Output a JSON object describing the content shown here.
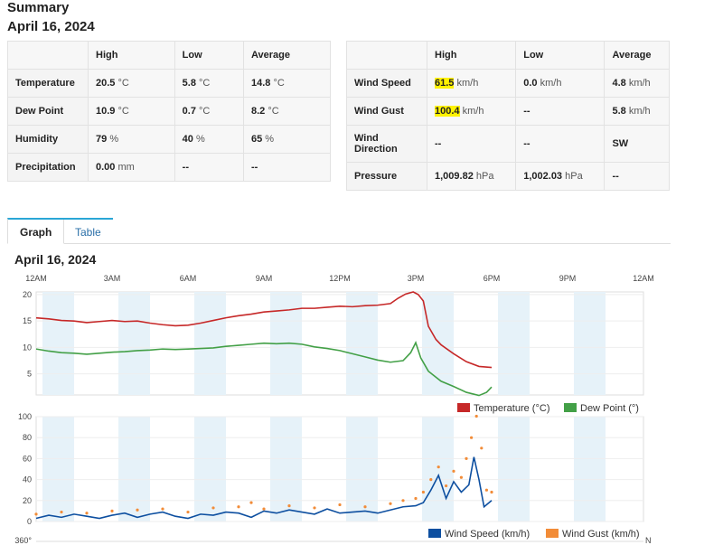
{
  "summary": {
    "title": "Summary",
    "date": "April 16, 2024"
  },
  "table_left": {
    "headers": [
      "",
      "High",
      "Low",
      "Average"
    ],
    "rows": [
      {
        "label": "Temperature",
        "high": "20.5",
        "high_unit": "°C",
        "low": "5.8",
        "low_unit": "°C",
        "avg": "14.8",
        "avg_unit": "°C"
      },
      {
        "label": "Dew Point",
        "high": "10.9",
        "high_unit": "°C",
        "low": "0.7",
        "low_unit": "°C",
        "avg": "8.2",
        "avg_unit": "°C"
      },
      {
        "label": "Humidity",
        "high": "79",
        "high_unit": "%",
        "low": "40",
        "low_unit": "%",
        "avg": "65",
        "avg_unit": "%"
      },
      {
        "label": "Precipitation",
        "high": "0.00",
        "high_unit": "mm",
        "low": "--",
        "low_unit": "",
        "avg": "--",
        "avg_unit": ""
      }
    ]
  },
  "table_right": {
    "headers": [
      "",
      "High",
      "Low",
      "Average"
    ],
    "rows": [
      {
        "label": "Wind Speed",
        "high": "61.5",
        "high_unit": "km/h",
        "low": "0.0",
        "low_unit": "km/h",
        "avg": "4.8",
        "avg_unit": "km/h"
      },
      {
        "label": "Wind Gust",
        "high": "100.4",
        "high_unit": "km/h",
        "low": "--",
        "low_unit": "",
        "avg": "5.8",
        "avg_unit": "km/h"
      },
      {
        "label": "Wind Direction",
        "high": "--",
        "high_unit": "",
        "low": "--",
        "low_unit": "",
        "avg": "SW",
        "avg_unit": ""
      },
      {
        "label": "Pressure",
        "high": "1,009.82",
        "high_unit": "hPa",
        "low": "1,002.03",
        "low_unit": "hPa",
        "avg": "--",
        "avg_unit": ""
      }
    ]
  },
  "highlight_color": "#fff200",
  "tabs": [
    {
      "label": "Graph",
      "active": true
    },
    {
      "label": "Table",
      "active": false
    }
  ],
  "chart_data": [
    {
      "type": "line",
      "title": "April 16, 2024",
      "x_ticks": [
        "12AM",
        "3AM",
        "6AM",
        "9AM",
        "12PM",
        "3PM",
        "6PM",
        "9PM",
        "12AM"
      ],
      "xlim": [
        0,
        24
      ],
      "ylim": [
        1,
        20.5
      ],
      "y_ticks": [
        5,
        10,
        15,
        20
      ],
      "series": [
        {
          "name": "Temperature (°C)",
          "color": "#c62828",
          "x": [
            0,
            0.5,
            1,
            1.5,
            2,
            2.5,
            3,
            3.5,
            4,
            4.5,
            5,
            5.5,
            6,
            6.5,
            7,
            7.5,
            8,
            8.5,
            9,
            9.5,
            10,
            10.5,
            11,
            11.5,
            12,
            12.5,
            13,
            13.5,
            14,
            14.3,
            14.6,
            14.9,
            15.1,
            15.3,
            15.5,
            15.8,
            16,
            16.5,
            17,
            17.5,
            18
          ],
          "y": [
            15.6,
            15.4,
            15.1,
            15.0,
            14.7,
            14.9,
            15.1,
            14.9,
            15.0,
            14.6,
            14.3,
            14.1,
            14.2,
            14.6,
            15.1,
            15.6,
            16.0,
            16.3,
            16.7,
            16.9,
            17.1,
            17.4,
            17.4,
            17.6,
            17.8,
            17.7,
            17.9,
            18.0,
            18.3,
            19.3,
            20.1,
            20.5,
            20.0,
            18.8,
            14.0,
            11.5,
            10.5,
            8.8,
            7.3,
            6.4,
            6.2
          ]
        },
        {
          "name": "Dew Point (°)",
          "color": "#43a047",
          "x": [
            0,
            0.5,
            1,
            1.5,
            2,
            2.5,
            3,
            3.5,
            4,
            4.5,
            5,
            5.5,
            6,
            6.5,
            7,
            7.5,
            8,
            8.5,
            9,
            9.5,
            10,
            10.5,
            11,
            11.5,
            12,
            12.5,
            13,
            13.5,
            14,
            14.5,
            14.8,
            15.0,
            15.2,
            15.5,
            16,
            16.5,
            17,
            17.5,
            17.8,
            18
          ],
          "y": [
            9.7,
            9.3,
            9.0,
            8.9,
            8.7,
            8.9,
            9.1,
            9.2,
            9.4,
            9.5,
            9.7,
            9.6,
            9.7,
            9.8,
            9.9,
            10.2,
            10.4,
            10.6,
            10.8,
            10.7,
            10.8,
            10.6,
            10.1,
            9.8,
            9.4,
            8.8,
            8.2,
            7.6,
            7.2,
            7.5,
            9.0,
            10.9,
            8.0,
            5.5,
            3.6,
            2.6,
            1.5,
            0.9,
            1.5,
            2.5
          ]
        }
      ]
    },
    {
      "type": "line",
      "xlim": [
        0,
        24
      ],
      "ylim": [
        0,
        100
      ],
      "y_ticks": [
        0,
        20,
        40,
        60,
        80,
        100
      ],
      "series": [
        {
          "name": "Wind Speed (km/h)",
          "color": "#0d4fa0",
          "x": [
            0,
            0.5,
            1,
            1.5,
            2,
            2.5,
            3,
            3.5,
            4,
            4.5,
            5,
            5.5,
            6,
            6.5,
            7,
            7.5,
            8,
            8.5,
            9,
            9.5,
            10,
            10.5,
            11,
            11.5,
            12,
            12.5,
            13,
            13.5,
            14,
            14.5,
            15,
            15.3,
            15.6,
            15.9,
            16.2,
            16.5,
            16.8,
            17.1,
            17.3,
            17.5,
            17.7,
            18
          ],
          "y": [
            3,
            6,
            4,
            7,
            5,
            3,
            6,
            8,
            4,
            7,
            9,
            5,
            3,
            7,
            6,
            9,
            8,
            4,
            10,
            8,
            11,
            9,
            7,
            12,
            8,
            9,
            10,
            8,
            11,
            14,
            15,
            18,
            30,
            44,
            22,
            38,
            28,
            35,
            61.5,
            40,
            14,
            20
          ]
        },
        {
          "name": "Wind Gust (km/h)",
          "color": "#f28c38",
          "x": [
            0,
            1,
            2,
            3,
            4,
            5,
            6,
            7,
            8,
            8.5,
            9,
            10,
            11,
            12,
            13,
            14,
            14.5,
            15,
            15.3,
            15.6,
            15.9,
            16.2,
            16.5,
            16.8,
            17.0,
            17.2,
            17.4,
            17.6,
            17.8,
            18
          ],
          "y": [
            7,
            9,
            8,
            10,
            11,
            12,
            9,
            13,
            14,
            18,
            12,
            15,
            13,
            16,
            14,
            17,
            20,
            22,
            28,
            40,
            52,
            34,
            48,
            42,
            60,
            80,
            100.4,
            70,
            30,
            28
          ]
        }
      ]
    }
  ],
  "legend_top": [
    {
      "label": "Temperature (°C)",
      "color": "#c62828"
    },
    {
      "label": "Dew Point (°)",
      "color": "#43a047"
    }
  ],
  "legend_bottom": [
    {
      "label": "Wind Speed (km/h)",
      "color": "#0d4fa0"
    },
    {
      "label": "Wind Gust (km/h)",
      "color": "#f28c38"
    }
  ],
  "third_chart": {
    "y_tick": "360°",
    "right_label": "N"
  }
}
